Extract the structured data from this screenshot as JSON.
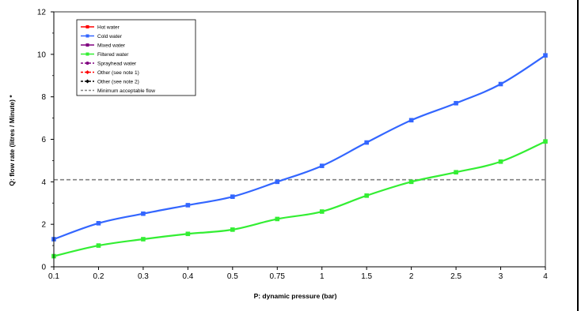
{
  "chart_data": {
    "type": "line",
    "xlabel": "P: dynamic pressure (bar)",
    "ylabel": "Q: flow rate (litres / Minute) *",
    "categories": [
      "0.1",
      "0.2",
      "0.3",
      "0.4",
      "0.5",
      "0.75",
      "1",
      "1.5",
      "2",
      "2.5",
      "3",
      "4"
    ],
    "ylim": [
      0,
      12
    ],
    "yticks": [
      "0",
      "2",
      "4",
      "6",
      "8",
      "10",
      "12"
    ],
    "grid": false,
    "legend_position": "top-left",
    "legend": [
      {
        "name": "Hot water",
        "color": "#ff0000",
        "style": "solid",
        "marker": "square"
      },
      {
        "name": "Cold water",
        "color": "#3366ff",
        "style": "solid",
        "marker": "square"
      },
      {
        "name": "Mixed water",
        "color": "#800080",
        "style": "solid",
        "marker": "square"
      },
      {
        "name": "Filtered water",
        "color": "#33ee33",
        "style": "solid",
        "marker": "square"
      },
      {
        "name": "Sprayhead water",
        "color": "#800080",
        "style": "dashed",
        "marker": "circle"
      },
      {
        "name": "Other (see note 1)",
        "color": "#ff0000",
        "style": "dashed",
        "marker": "diamond"
      },
      {
        "name": "Other (see note 2)",
        "color": "#000000",
        "style": "dashed",
        "marker": "diamond"
      },
      {
        "name": "Minimum acceptable flow",
        "color": "#808080",
        "style": "dashed",
        "marker": "none"
      }
    ],
    "series": [
      {
        "name": "Cold water",
        "color": "#3366ff",
        "values": [
          1.3,
          2.05,
          2.5,
          2.9,
          3.3,
          4.0,
          4.75,
          5.85,
          6.9,
          7.7,
          8.6,
          9.95
        ]
      },
      {
        "name": "Filtered water",
        "color": "#33ee33",
        "values": [
          0.5,
          1.0,
          1.3,
          1.55,
          1.75,
          2.25,
          2.6,
          3.35,
          4.0,
          4.45,
          4.95,
          5.9
        ]
      }
    ],
    "reference_line": {
      "name": "Minimum acceptable flow",
      "value": 4.1,
      "color": "#808080"
    }
  }
}
